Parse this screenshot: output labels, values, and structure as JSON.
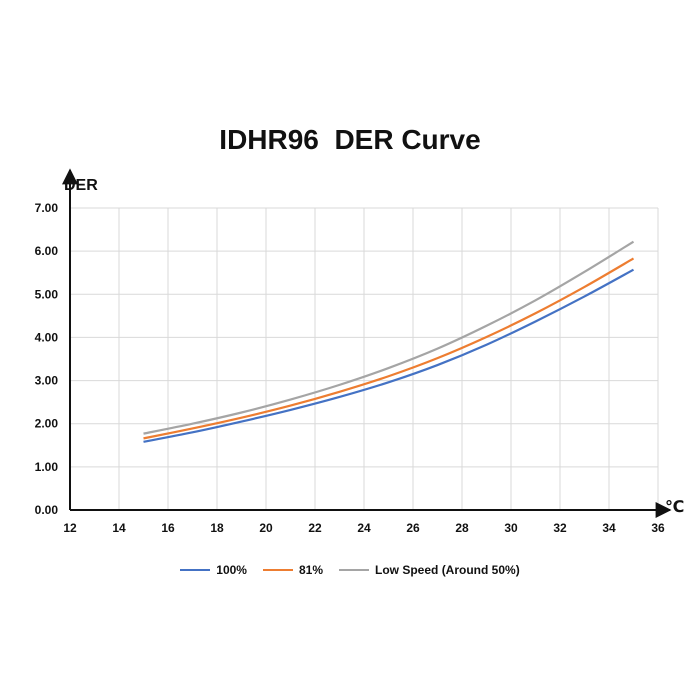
{
  "chart_data": {
    "type": "line",
    "title": "IDHR96  DER Curve",
    "ylabel": "DER",
    "xlabel": "℃",
    "xlim": [
      12,
      36
    ],
    "ylim": [
      0,
      7
    ],
    "xticks": [
      "12",
      "14",
      "16",
      "18",
      "20",
      "22",
      "24",
      "26",
      "28",
      "30",
      "32",
      "34",
      "36"
    ],
    "yticks": [
      "0.00",
      "1.00",
      "2.00",
      "3.00",
      "4.00",
      "5.00",
      "6.00",
      "7.00"
    ],
    "grid": true,
    "legend_position": "bottom",
    "x": [
      15,
      17,
      19,
      21,
      23,
      25,
      27,
      29,
      31,
      33,
      35
    ],
    "series": [
      {
        "name": "100%",
        "color": "#4472C4",
        "values": [
          1.58,
          1.8,
          2.05,
          2.32,
          2.62,
          2.96,
          3.36,
          3.83,
          4.37,
          4.95,
          5.57
        ]
      },
      {
        "name": "81%",
        "color": "#ED7D31",
        "values": [
          1.66,
          1.89,
          2.14,
          2.42,
          2.74,
          3.1,
          3.52,
          4.01,
          4.56,
          5.17,
          5.83
        ]
      },
      {
        "name": "Low Speed (Around 50%)",
        "color": "#A5A5A5",
        "values": [
          1.77,
          2.0,
          2.26,
          2.56,
          2.9,
          3.29,
          3.74,
          4.27,
          4.86,
          5.52,
          6.22
        ]
      }
    ]
  }
}
